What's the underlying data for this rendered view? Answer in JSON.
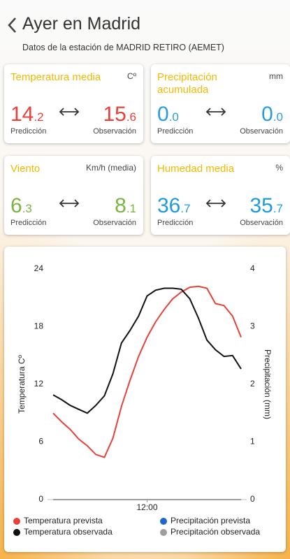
{
  "header": {
    "title": "Ayer en Madrid",
    "subtitle": "Datos de la estación de MADRID RETIRO (AEMET)"
  },
  "cards": [
    {
      "title": "Temperatura media",
      "unit": "Cº",
      "prediction": "14.2",
      "observation": "15.6",
      "prediction_label": "Predicción",
      "observation_label": "Observación",
      "color": "#e8403a"
    },
    {
      "title": "Precipitación acumulada",
      "unit": "mm",
      "prediction": "0.0",
      "observation": "0.0",
      "prediction_label": "Predicción",
      "observation_label": "Observación",
      "color": "#2a9de0"
    },
    {
      "title": "Viento",
      "unit": "Km/h (media)",
      "prediction": "6.3",
      "observation": "8.1",
      "prediction_label": "Predicción",
      "observation_label": "Observación",
      "color": "#7cb342"
    },
    {
      "title": "Humedad media",
      "unit": "%",
      "prediction": "36.7",
      "observation": "35.7",
      "prediction_label": "Predicción",
      "observation_label": "Observación",
      "color": "#1e9be0"
    }
  ],
  "chart_data": {
    "type": "line",
    "y_label": "Temperatura Cº",
    "y2_label": "Precipitación (mm)",
    "x": [
      0,
      1,
      2,
      3,
      4,
      5,
      6,
      7,
      8,
      9,
      10,
      11,
      12,
      13,
      14,
      15,
      16,
      17,
      18,
      19,
      20,
      21,
      22
    ],
    "xlim": [
      0,
      22
    ],
    "xticks": [
      {
        "value": 11,
        "label": "12:00"
      }
    ],
    "ylim": [
      0,
      24
    ],
    "yticks": [
      0,
      6,
      12,
      18,
      24
    ],
    "y2lim": [
      0,
      4
    ],
    "y2ticks": [
      0,
      1,
      2,
      3,
      4
    ],
    "series": [
      {
        "name": "Temperatura prevista",
        "color": "#e8403a",
        "values": [
          9.0,
          8.1,
          7.3,
          6.3,
          5.6,
          4.7,
          4.4,
          6.4,
          9.7,
          12.4,
          14.9,
          16.9,
          18.5,
          19.8,
          20.9,
          21.6,
          22.1,
          22.2,
          22.0,
          20.4,
          20.2,
          19.1,
          16.9
        ]
      },
      {
        "name": "Temperatura observada",
        "color": "#111111",
        "values": [
          10.9,
          10.4,
          9.8,
          9.4,
          9.0,
          9.8,
          10.8,
          13.1,
          16.3,
          17.6,
          19.1,
          21.2,
          21.8,
          22.0,
          22.0,
          21.9,
          20.9,
          18.9,
          16.6,
          15.6,
          14.9,
          15.0,
          13.6
        ]
      },
      {
        "name": "Precipitación prevista",
        "color": "#1e66c8",
        "axis": "y2",
        "values": [
          0,
          0,
          0,
          0,
          0,
          0,
          0,
          0,
          0,
          0,
          0,
          0,
          0,
          0,
          0,
          0,
          0,
          0,
          0,
          0,
          0,
          0,
          0
        ]
      },
      {
        "name": "Precipitación observada",
        "color": "#9e9e9e",
        "axis": "y2",
        "values": [
          0,
          0,
          0,
          0,
          0,
          0,
          0,
          0,
          0,
          0,
          0,
          0,
          0,
          0,
          0,
          0,
          0,
          0,
          0,
          0,
          0,
          0,
          0
        ]
      }
    ]
  }
}
